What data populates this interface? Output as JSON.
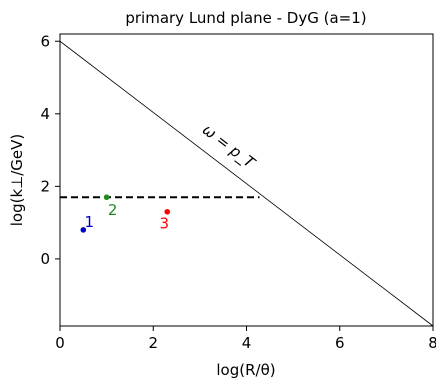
{
  "chart_data": {
    "type": "scatter",
    "title": "primary Lund plane - DyG (a=1)",
    "xlabel": "log(R/θ)",
    "ylabel": "log(k⊥/GeV)",
    "xlim": [
      0,
      8
    ],
    "ylim": [
      -1.85,
      6.2
    ],
    "xticks": [
      0,
      2,
      4,
      6,
      8
    ],
    "yticks": [
      0,
      2,
      4,
      6
    ],
    "grid": false,
    "lines": [
      {
        "kind": "solid",
        "color": "#000000",
        "x": [
          0,
          8
        ],
        "y": [
          6,
          -1.85
        ],
        "label": "ω = p_T",
        "label_x": 3.55,
        "label_y": 3.0
      },
      {
        "kind": "dashed",
        "color": "#000000",
        "x": [
          0,
          4.28
        ],
        "y": [
          1.7,
          1.7
        ]
      }
    ],
    "points": [
      {
        "label": "1",
        "x": 0.5,
        "y": 0.8,
        "color": "#0000cc"
      },
      {
        "label": "2",
        "x": 1.0,
        "y": 1.7,
        "color": "#228b22"
      },
      {
        "label": "3",
        "x": 2.3,
        "y": 1.3,
        "color": "#ff0000"
      }
    ]
  }
}
